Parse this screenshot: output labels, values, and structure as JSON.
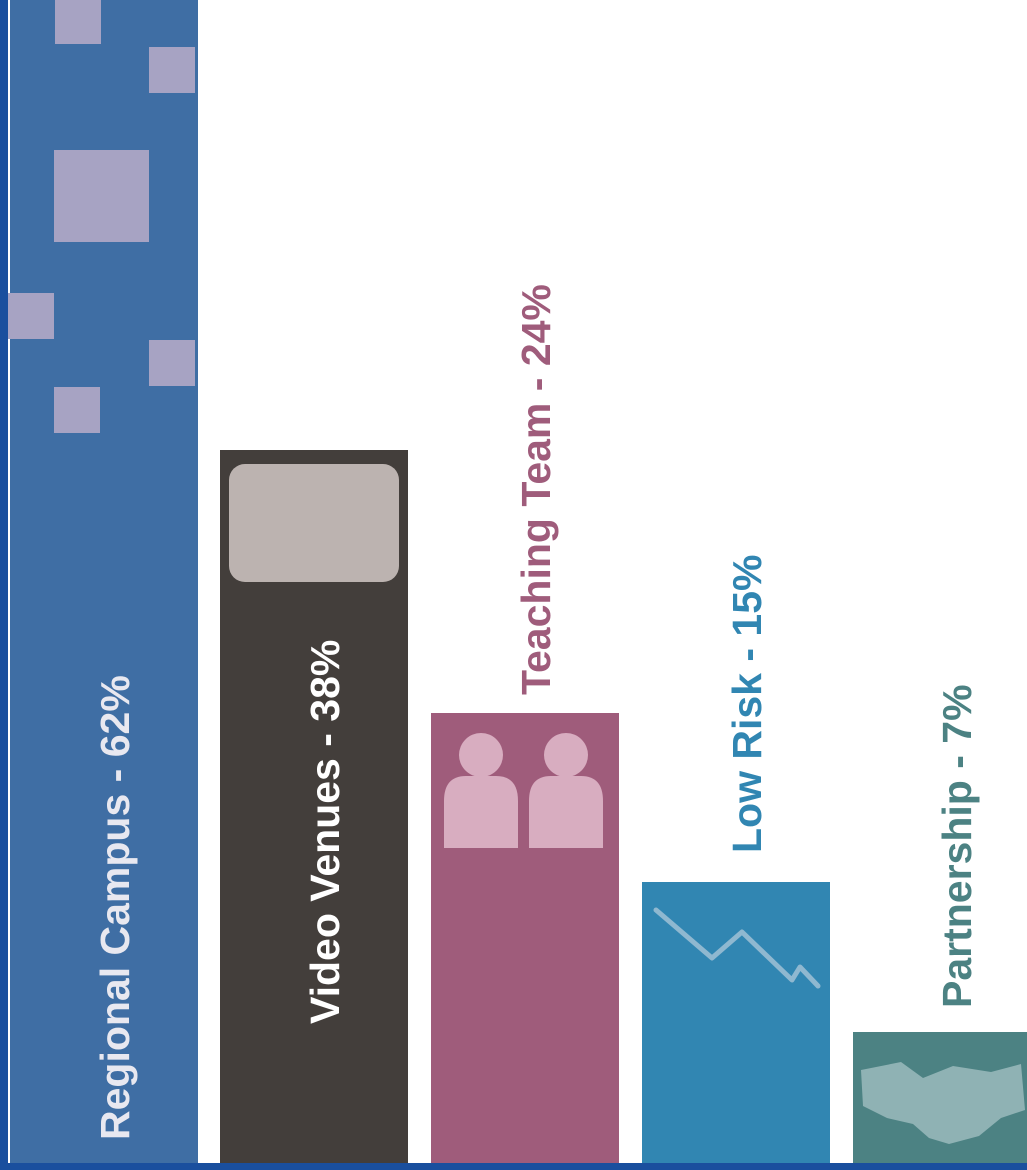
{
  "colors": {
    "page_background": "#ffffff",
    "frame_blue": "#1a4f9e",
    "deco_square": "#a7a3c3",
    "bar_regional": "#3f6ea4",
    "bar_video": "#433e3b",
    "bar_teaching": "#9f5c7b",
    "bar_lowrisk": "#3186b2",
    "bar_partnership": "#4c8283",
    "icon_screen": "#bcb3b0",
    "icon_people": "#d8adc0",
    "icon_trend": "#8fb8d0",
    "icon_handshake": "#8fb2b4",
    "label_regional": "#e8e8f0",
    "label_video": "#ffffff",
    "label_teaching": "#9f5c7b",
    "label_lowrisk": "#3186b2",
    "label_partnership": "#4c8283"
  },
  "chart_data": {
    "type": "bar",
    "title": "",
    "xlabel": "",
    "ylabel": "",
    "ylim": [
      0,
      62
    ],
    "grid": false,
    "legend": "none",
    "categories": [
      "Regional Campus",
      "Video Venues",
      "Teaching Team",
      "Low Risk",
      "Partnership"
    ],
    "values": [
      62,
      38,
      24,
      15,
      7
    ],
    "labels": [
      "Regional Campus - 62%",
      "Video Venues - 38%",
      "Teaching Team - 24%",
      "Low Risk - 15%",
      "Partnership - 7%"
    ],
    "icons": [
      "squares-pattern-icon",
      "video-screen-icon",
      "people-icon",
      "trend-down-icon",
      "handshake-icon"
    ]
  }
}
